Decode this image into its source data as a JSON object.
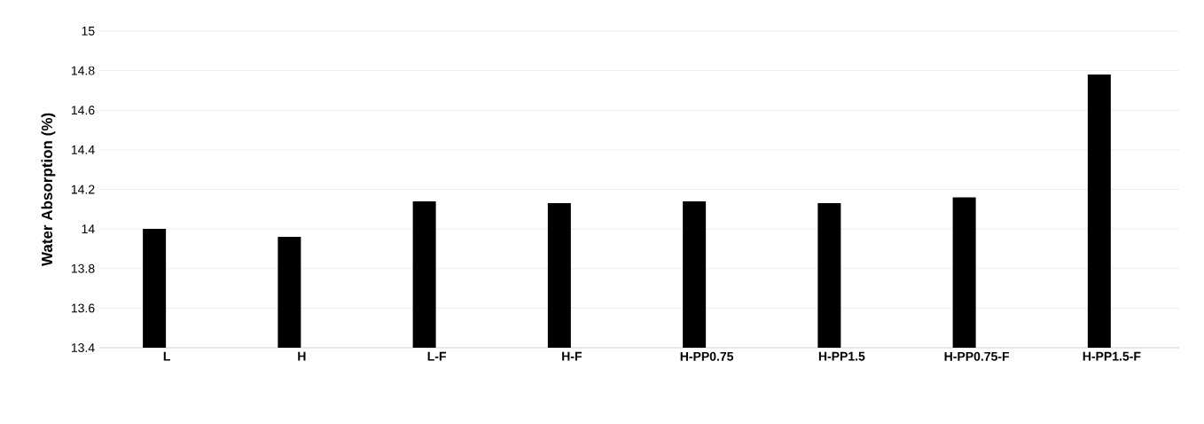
{
  "chart_data": {
    "type": "bar",
    "ylabel": "Water Absorption (%)",
    "categories": [
      "L",
      "H",
      "L-F",
      "H-F",
      "H-PP0.75",
      "H-PP1.5",
      "H-PP0.75-F",
      "H-PP1.5-F"
    ],
    "values": [
      14.0,
      13.96,
      14.14,
      14.13,
      14.14,
      14.13,
      14.16,
      14.78
    ],
    "color": "#000000",
    "ylim": [
      13.4,
      15
    ],
    "yticks": [
      13.4,
      13.6,
      13.8,
      14,
      14.2,
      14.4,
      14.6,
      14.8,
      15
    ],
    "grid": "y"
  }
}
